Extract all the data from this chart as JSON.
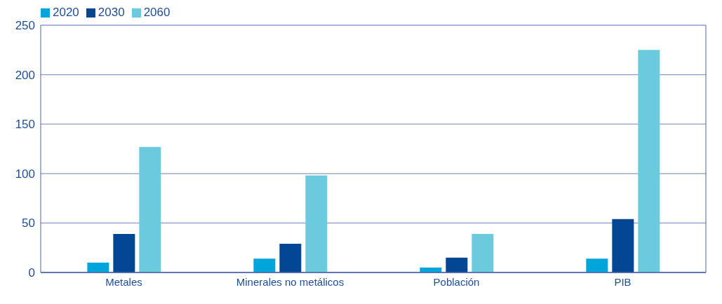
{
  "chart_data": {
    "type": "bar",
    "categories": [
      "Metales",
      "Minerales no metálicos",
      "Población",
      "PIB"
    ],
    "series": [
      {
        "name": "2020",
        "color": "#00a5dc",
        "values": [
          10,
          14,
          5,
          14
        ]
      },
      {
        "name": "2030",
        "color": "#034694",
        "values": [
          39,
          29,
          15,
          54
        ]
      },
      {
        "name": "2060",
        "color": "#6ccadf",
        "values": [
          127,
          98,
          39,
          225
        ]
      }
    ],
    "ylim": [
      0,
      250
    ],
    "yticks": [
      0,
      50,
      100,
      150,
      200,
      250
    ],
    "grid": "y",
    "legend": "top left"
  }
}
